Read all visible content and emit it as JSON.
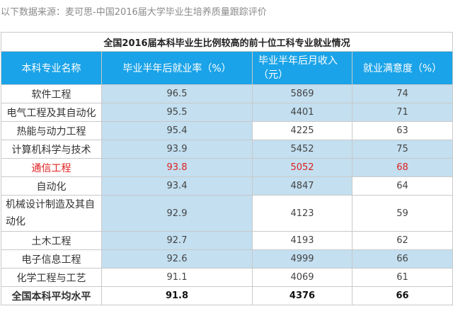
{
  "source_note": "以下数据来源：麦可思-中国2016届大学毕业生培养质量跟踪评价",
  "table": {
    "title": "全国2016届本科毕业生比例较高的前十位工科专业就业情况",
    "headers": {
      "major": "本科专业名称",
      "employment_rate": "毕业半年后就业率（%）",
      "income": "毕业半年后月收入（元）",
      "satisfaction": "就业满意度（%）"
    },
    "rows": [
      {
        "major": "软件工程",
        "employment_rate": "96.5",
        "income": "5869",
        "satisfaction": "74"
      },
      {
        "major": "电气工程及其自动化",
        "employment_rate": "95.5",
        "income": "4401",
        "satisfaction": "71"
      },
      {
        "major": "热能与动力工程",
        "employment_rate": "95.4",
        "income": "4225",
        "satisfaction": "63"
      },
      {
        "major": "计算机科学与技术",
        "employment_rate": "93.9",
        "income": "5452",
        "satisfaction": "75"
      },
      {
        "major": "通信工程",
        "employment_rate": "93.8",
        "income": "5052",
        "satisfaction": "68"
      },
      {
        "major": "自动化",
        "employment_rate": "93.4",
        "income": "4847",
        "satisfaction": "64"
      },
      {
        "major": "机械设计制造及其自动化",
        "employment_rate": "92.9",
        "income": "4123",
        "satisfaction": "59"
      },
      {
        "major": "土木工程",
        "employment_rate": "92.7",
        "income": "4193",
        "satisfaction": "62"
      },
      {
        "major": "电子信息工程",
        "employment_rate": "92.6",
        "income": "4999",
        "satisfaction": "66"
      },
      {
        "major": "化学工程与工艺",
        "employment_rate": "91.1",
        "income": "4069",
        "satisfaction": "61"
      }
    ],
    "average": {
      "major": "全国本科平均水平",
      "employment_rate": "91.8",
      "income": "4376",
      "satisfaction": "66"
    }
  },
  "colors": {
    "header_bg": "#1aa3e8",
    "highlight_bg": "#c3dff0",
    "emphasis_text": "#e02020"
  }
}
